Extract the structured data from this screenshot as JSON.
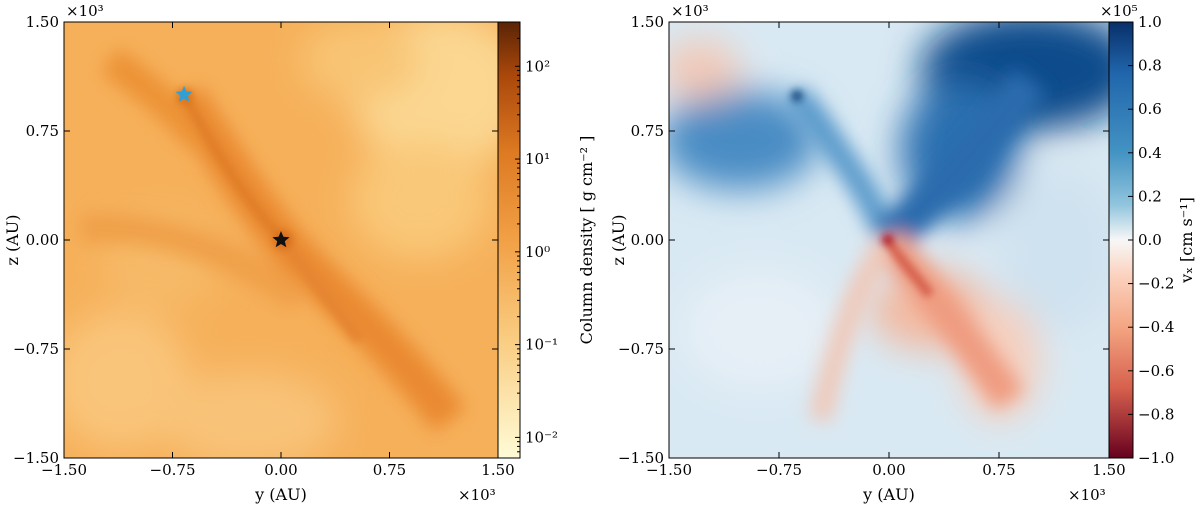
{
  "chart_data": [
    {
      "type": "heatmap",
      "title": "",
      "xlabel": "y  (AU)",
      "ylabel": "z  (AU)",
      "xlim": [
        -1.5,
        1.5
      ],
      "ylim": [
        -1.5,
        1.5
      ],
      "xticks": [
        -1.5,
        -0.75,
        0.0,
        0.75,
        1.5
      ],
      "yticks": [
        -1.5,
        -0.75,
        0.0,
        0.75,
        1.5
      ],
      "xtick_labels": [
        "−1.50",
        "−0.75",
        "0.00",
        "0.75",
        "1.50"
      ],
      "ytick_labels": [
        "−1.50",
        "−0.75",
        "0.00",
        "0.75",
        "1.50"
      ],
      "x_multiplier": "×10³",
      "y_multiplier": "×10³",
      "colormap": "orange (log scale)",
      "colorbar": {
        "label": "Column density    [ g cm⁻² ]",
        "scale": "log",
        "range": [
          0.006,
          300
        ],
        "ticks": [
          0.01,
          0.1,
          1,
          10,
          100
        ],
        "tick_labels": [
          "10⁻²",
          "10⁻¹",
          "10⁰",
          "10¹",
          "10²"
        ],
        "colors": [
          "#fffbd6",
          "#fde6a8",
          "#f7b65c",
          "#ef8d2c",
          "#c8570e",
          "#5a2405"
        ]
      },
      "markers": [
        {
          "name": "blue-star",
          "x": -0.67,
          "y": 1.0,
          "color": "#2f9fd6"
        },
        {
          "name": "black-star",
          "x": 0.0,
          "y": 0.0,
          "color": "#111111"
        }
      ]
    },
    {
      "type": "heatmap",
      "title": "",
      "xlabel": "y  (AU)",
      "ylabel": "z  (AU)",
      "xlim": [
        -1.5,
        1.5
      ],
      "ylim": [
        -1.5,
        1.5
      ],
      "xticks": [
        -1.5,
        -0.75,
        0.0,
        0.75,
        1.5
      ],
      "yticks": [
        -1.5,
        -0.75,
        0.0,
        0.75,
        1.5
      ],
      "xtick_labels": [
        "−1.50",
        "−0.75",
        "0.00",
        "0.75",
        "1.50"
      ],
      "ytick_labels": [
        "−1.50",
        "−0.75",
        "0.00",
        "0.75",
        "1.50"
      ],
      "x_multiplier": "×10³",
      "y_multiplier": "×10³",
      "colormap": "RdBu (diverging)",
      "colorbar": {
        "label": "vₓ   [cm s⁻¹]",
        "scale": "linear",
        "range": [
          -1.0,
          1.0
        ],
        "multiplier": "×10⁵",
        "ticks": [
          -1.0,
          -0.8,
          -0.6,
          -0.4,
          -0.2,
          0.0,
          0.2,
          0.4,
          0.6,
          0.8,
          1.0
        ],
        "tick_labels": [
          "−1.0",
          "−0.8",
          "−0.6",
          "−0.4",
          "−0.2",
          "0.0",
          "0.2",
          "0.4",
          "0.6",
          "0.8",
          "1.0"
        ],
        "colors": [
          "#67001f",
          "#d6604d",
          "#f4a582",
          "#fbe3d6",
          "#f7f7f7",
          "#d1e5f0",
          "#92c5de",
          "#4393c3",
          "#08306b"
        ]
      }
    }
  ]
}
